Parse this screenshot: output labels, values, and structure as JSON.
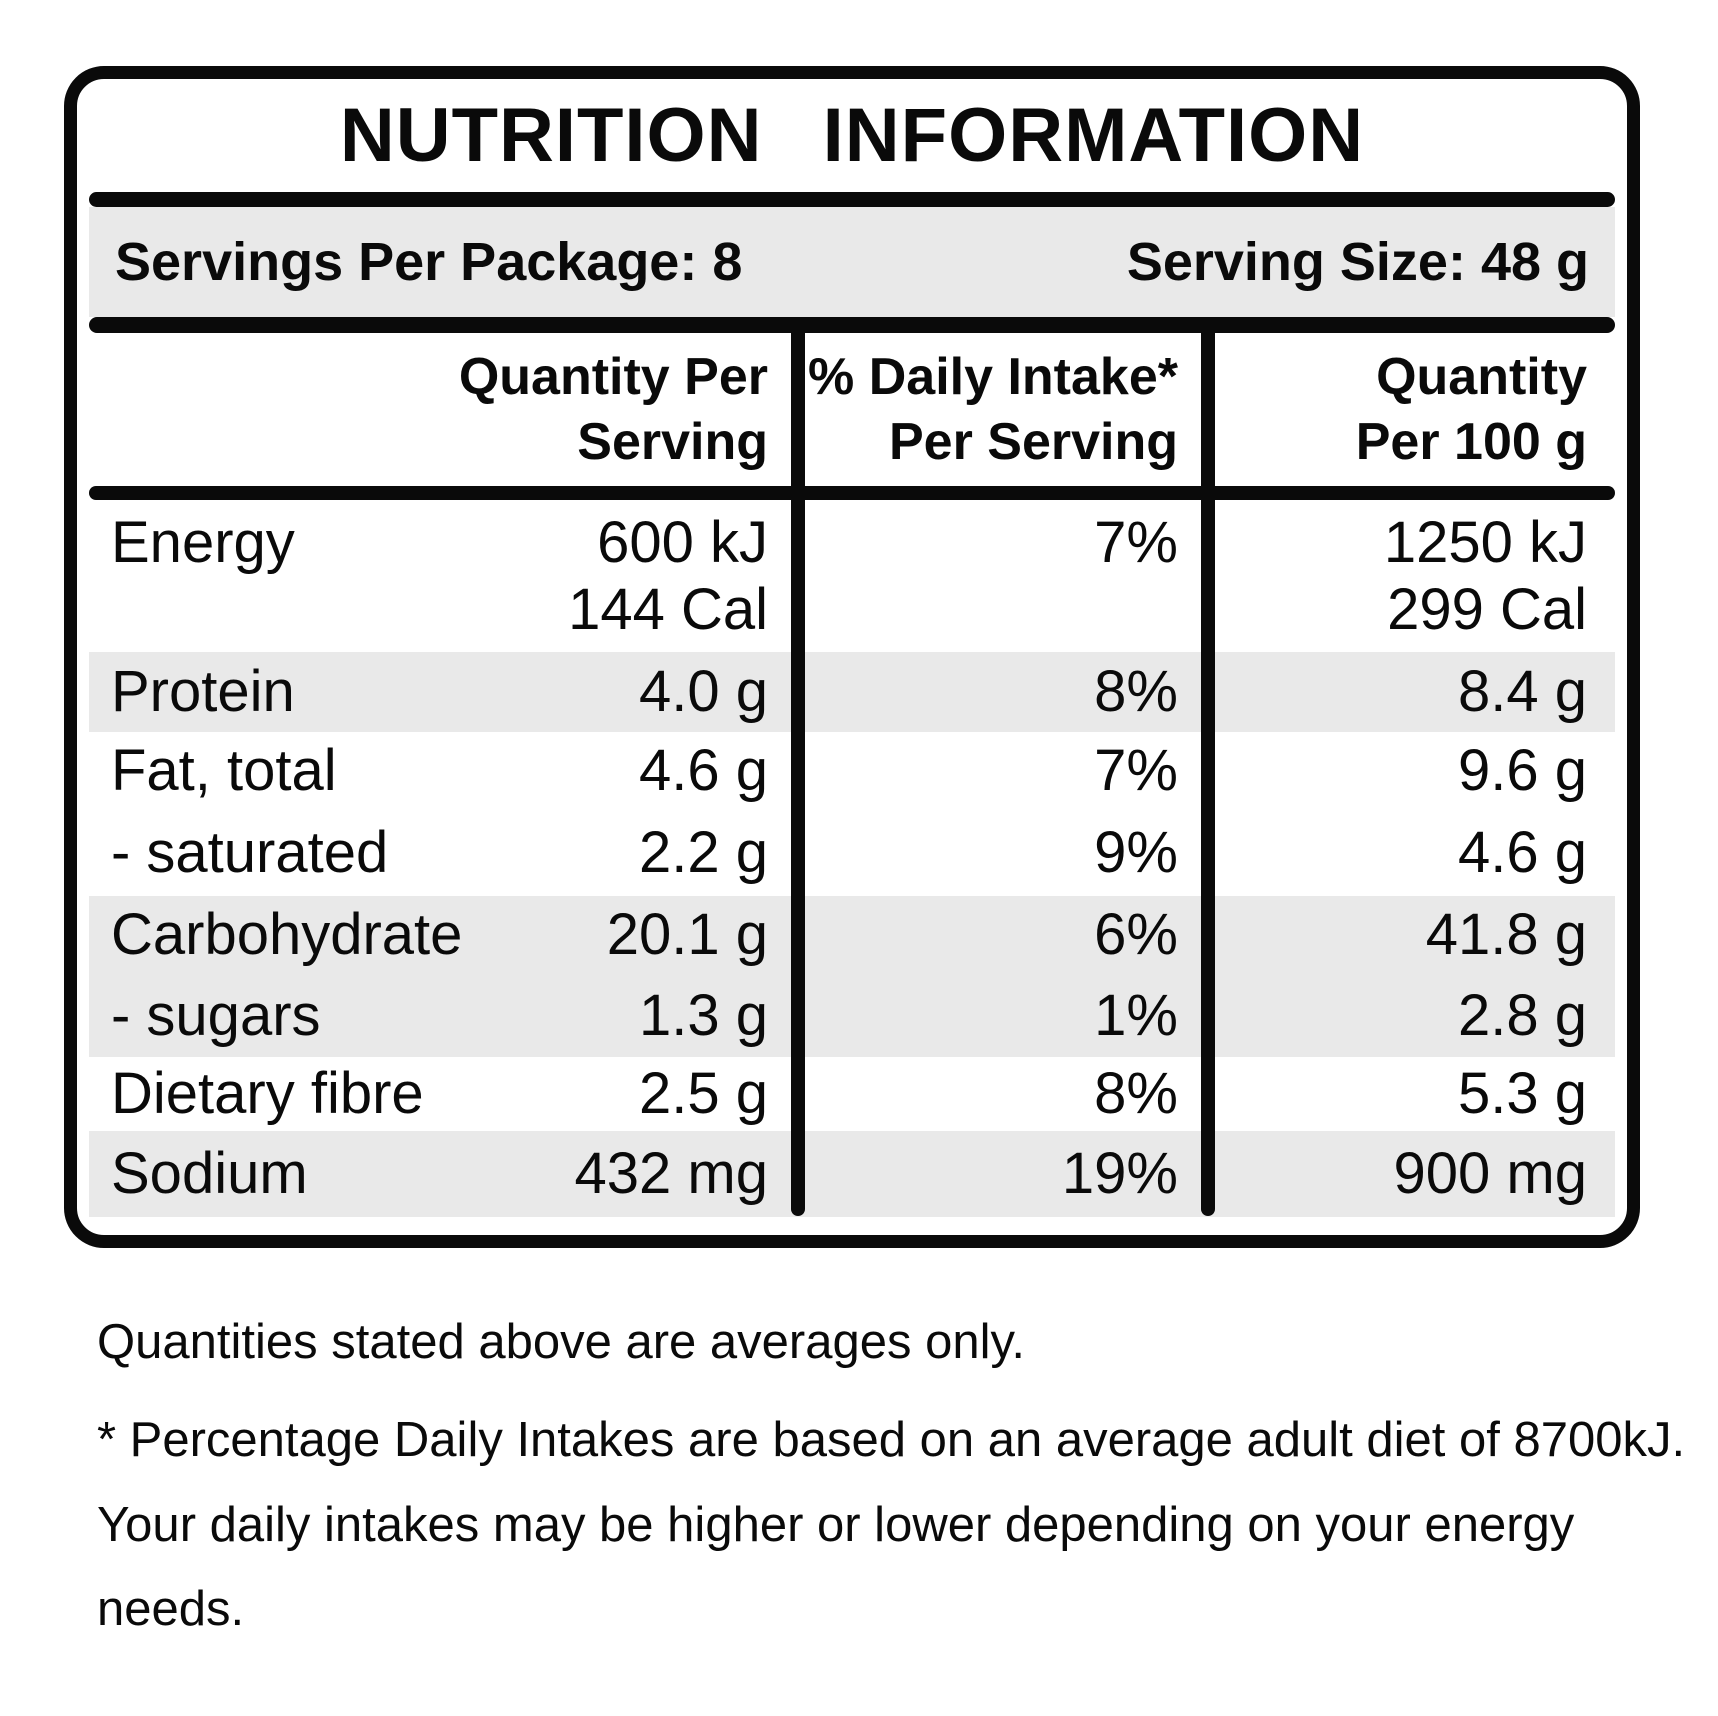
{
  "panel": {
    "title": "NUTRITION INFORMATION",
    "servings": {
      "per_package": "Servings Per Package: 8",
      "serving_size": "Serving Size: 48 g"
    },
    "table": {
      "headers": {
        "per_serving": "Quantity Per\nServing",
        "daily_intake": "% Daily Intake*\nPer Serving",
        "per_100g": "Quantity\nPer 100 g"
      },
      "rows": [
        {
          "label": "Energy",
          "per_serving": "600 kJ\n144 Cal",
          "daily_intake": "7%",
          "per_100g": "1250 kJ\n299 Cal",
          "shaded": false
        },
        {
          "label": "Protein",
          "per_serving": "4.0 g",
          "daily_intake": "8%",
          "per_100g": "8.4 g",
          "shaded": true
        },
        {
          "label": "Fat, total",
          "per_serving": "4.6 g",
          "daily_intake": "7%",
          "per_100g": "9.6 g",
          "shaded": false
        },
        {
          "label": "- saturated",
          "per_serving": "2.2 g",
          "daily_intake": "9%",
          "per_100g": "4.6 g",
          "shaded": false
        },
        {
          "label": "Carbohydrate",
          "per_serving": "20.1 g",
          "daily_intake": "6%",
          "per_100g": "41.8 g",
          "shaded": true
        },
        {
          "label": "- sugars",
          "per_serving": "1.3 g",
          "daily_intake": "1%",
          "per_100g": "2.8 g",
          "shaded": true
        },
        {
          "label": "Dietary fibre",
          "per_serving": "2.5 g",
          "daily_intake": "8%",
          "per_100g": "5.3 g",
          "shaded": false
        },
        {
          "label": "Sodium",
          "per_serving": "432 mg",
          "daily_intake": "19%",
          "per_100g": "900 mg",
          "shaded": true
        }
      ]
    }
  },
  "footer": {
    "note_averages": "Quantities stated above are averages only.",
    "note_daily_intake": "* Percentage Daily Intakes are based on an average adult diet of 8700kJ. Your daily intakes may be higher or lower depending on your energy needs."
  },
  "colors": {
    "ink": "#0a0a0a",
    "shading": "#e9e9e9"
  }
}
